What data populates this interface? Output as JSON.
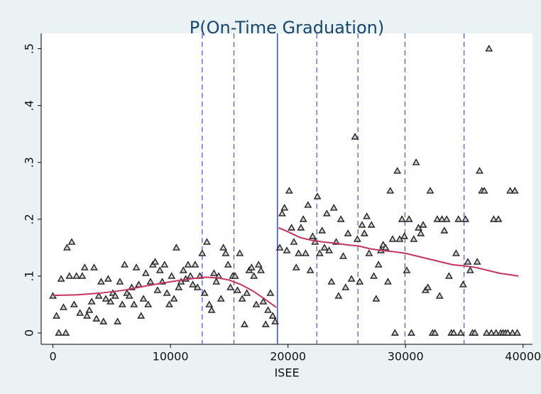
{
  "chart_data": {
    "type": "scatter",
    "title": "P(On-Time Graduation)",
    "x_label": "ISEE",
    "xlim": [
      -1000,
      40800
    ],
    "ylim": [
      -0.02,
      0.527
    ],
    "xticks": [
      0,
      10000,
      20000,
      30000,
      40000
    ],
    "yticks": [
      0,
      {
        "value": 0.1,
        "label": ".1"
      },
      {
        "value": 0.2,
        "label": ".2"
      },
      {
        "value": 0.3,
        "label": ".3"
      },
      {
        "value": 0.4,
        "label": ".4"
      },
      {
        "value": 0.5,
        "label": ".5"
      }
    ],
    "series": [
      {
        "type": "scatter",
        "color": "#222222",
        "x": [
          0,
          300,
          500,
          700,
          900,
          1100,
          1200,
          1400,
          1600,
          1800,
          2000,
          2300,
          2500,
          2700,
          2900,
          3100,
          3300,
          3500,
          3700,
          3900,
          4100,
          4300,
          4500,
          4700,
          4900,
          5100,
          5300,
          5500,
          5700,
          5900,
          6100,
          6300,
          6500,
          6700,
          6900,
          7100,
          7300,
          7500,
          7700,
          7900,
          8100,
          8300,
          8500,
          8700,
          8900,
          9100,
          9300,
          9500,
          9700,
          9900,
          10100,
          10300,
          10500,
          10700,
          10900,
          11100,
          11300,
          11500,
          11700,
          11900,
          12100,
          12300,
          12500,
          12700,
          12900,
          13100,
          13300,
          13500,
          13700,
          13900,
          14100,
          14300,
          14500,
          14700,
          14900,
          15100,
          15300,
          15500,
          15700,
          15900,
          16100,
          16300,
          16500,
          16700,
          16900,
          17100,
          17300,
          17500,
          17700,
          17900,
          18100,
          18300,
          18500,
          18700,
          18900,
          19300,
          19500,
          19700,
          19900,
          20100,
          20300,
          20500,
          20700,
          20900,
          21100,
          21300,
          21500,
          21700,
          21900,
          22100,
          22300,
          22500,
          22700,
          22900,
          23100,
          23300,
          23500,
          23700,
          23900,
          24100,
          24300,
          24500,
          24700,
          24900,
          25100,
          25400,
          25700,
          25900,
          26100,
          26300,
          26500,
          26700,
          26900,
          27100,
          27300,
          27500,
          27700,
          27900,
          28100,
          28300,
          28500,
          28700,
          28900,
          29100,
          29300,
          29500,
          29700,
          29900,
          30100,
          30300,
          30500,
          30700,
          30900,
          31100,
          31300,
          31500,
          31700,
          31900,
          32100,
          32300,
          32500,
          32700,
          32900,
          33100,
          33300,
          33500,
          33700,
          33900,
          34100,
          34300,
          34500,
          34700,
          34900,
          35100,
          35300,
          35500,
          35700,
          35900,
          36100,
          36300,
          36500,
          36700,
          36900,
          37100,
          37300,
          37500,
          37700,
          37900,
          38100,
          38300,
          38500,
          38700,
          38900,
          39100,
          39300,
          39500
        ],
        "values": [
          0.065,
          0.03,
          0,
          0.095,
          0.045,
          0,
          0.15,
          0.1,
          0.16,
          0.05,
          0.1,
          0.035,
          0.1,
          0.115,
          0.03,
          0.04,
          0.055,
          0.115,
          0.025,
          0.065,
          0.09,
          0.02,
          0.06,
          0.095,
          0.055,
          0.07,
          0.065,
          0.02,
          0.09,
          0.05,
          0.12,
          0.07,
          0.065,
          0.08,
          0.05,
          0.115,
          0.085,
          0.03,
          0.06,
          0.105,
          0.05,
          0.09,
          0.12,
          0.125,
          0.075,
          0.11,
          0.09,
          0.12,
          0.07,
          0.05,
          0.1,
          0.06,
          0.15,
          0.08,
          0.09,
          0.11,
          0.095,
          0.12,
          0.1,
          0.085,
          0.12,
          0.08,
          0.1,
          0.14,
          0.07,
          0.16,
          0.05,
          0.04,
          0.105,
          0.09,
          0.1,
          0.06,
          0.15,
          0.14,
          0.12,
          0.08,
          0.1,
          0.1,
          0.075,
          0.14,
          0.06,
          0.015,
          0.07,
          0.11,
          0.115,
          0.1,
          0.05,
          0.12,
          0.11,
          0.055,
          0.015,
          0.04,
          0.07,
          0.03,
          0.02,
          0.15,
          0.21,
          0.22,
          0.145,
          0.25,
          0.185,
          0.16,
          0.115,
          0.14,
          0.185,
          0.2,
          0.14,
          0.225,
          0.11,
          0.17,
          0.16,
          0.24,
          0.14,
          0.18,
          0.15,
          0.21,
          0.145,
          0.09,
          0.22,
          0.16,
          0.065,
          0.2,
          0.135,
          0.08,
          0.175,
          0.095,
          0.345,
          0.165,
          0.09,
          0.19,
          0.175,
          0.205,
          0.14,
          0.19,
          0.1,
          0.06,
          0.12,
          0.145,
          0.155,
          0.15,
          0.09,
          0.25,
          0.165,
          0,
          0.285,
          0.165,
          0.2,
          0.17,
          0.11,
          0.2,
          0,
          0.165,
          0.3,
          0.185,
          0.175,
          0.19,
          0.075,
          0.08,
          0.25,
          0,
          0,
          0.2,
          0.065,
          0.2,
          0.18,
          0.2,
          0.1,
          0,
          0,
          0.14,
          0.2,
          0,
          0.085,
          0.2,
          0.125,
          0.11,
          0,
          0,
          0.125,
          0.285,
          0.25,
          0.25,
          0,
          0.5,
          0,
          0.2,
          0,
          0.2,
          0,
          0,
          0,
          0,
          0.25,
          0,
          0.25,
          0
        ]
      },
      {
        "type": "line",
        "color": "#c4365c",
        "x": [
          0,
          2000,
          4000,
          6000,
          8000,
          10000,
          12000,
          13000,
          14000,
          15000,
          16000,
          17000,
          18000,
          19000
        ],
        "values": [
          0.066,
          0.067,
          0.07,
          0.075,
          0.083,
          0.09,
          0.096,
          0.098,
          0.097,
          0.093,
          0.085,
          0.074,
          0.06,
          0.045
        ]
      },
      {
        "type": "line",
        "color": "#c4365c",
        "x": [
          19200,
          20000,
          21000,
          22000,
          23000,
          24000,
          25000,
          26000,
          27000,
          28000,
          29000,
          30000,
          31000,
          32000,
          33000,
          34000,
          35000,
          36000,
          37000,
          38000,
          39600
        ],
        "values": [
          0.185,
          0.178,
          0.168,
          0.163,
          0.16,
          0.158,
          0.155,
          0.153,
          0.148,
          0.145,
          0.143,
          0.14,
          0.135,
          0.13,
          0.125,
          0.12,
          0.118,
          0.115,
          0.11,
          0.105,
          0.1
        ]
      }
    ],
    "reference_lines": {
      "color": "#3b55dc",
      "dashed": [
        12700,
        15400,
        22450,
        25950,
        29950,
        34980
      ],
      "solid": [
        19100
      ]
    }
  }
}
